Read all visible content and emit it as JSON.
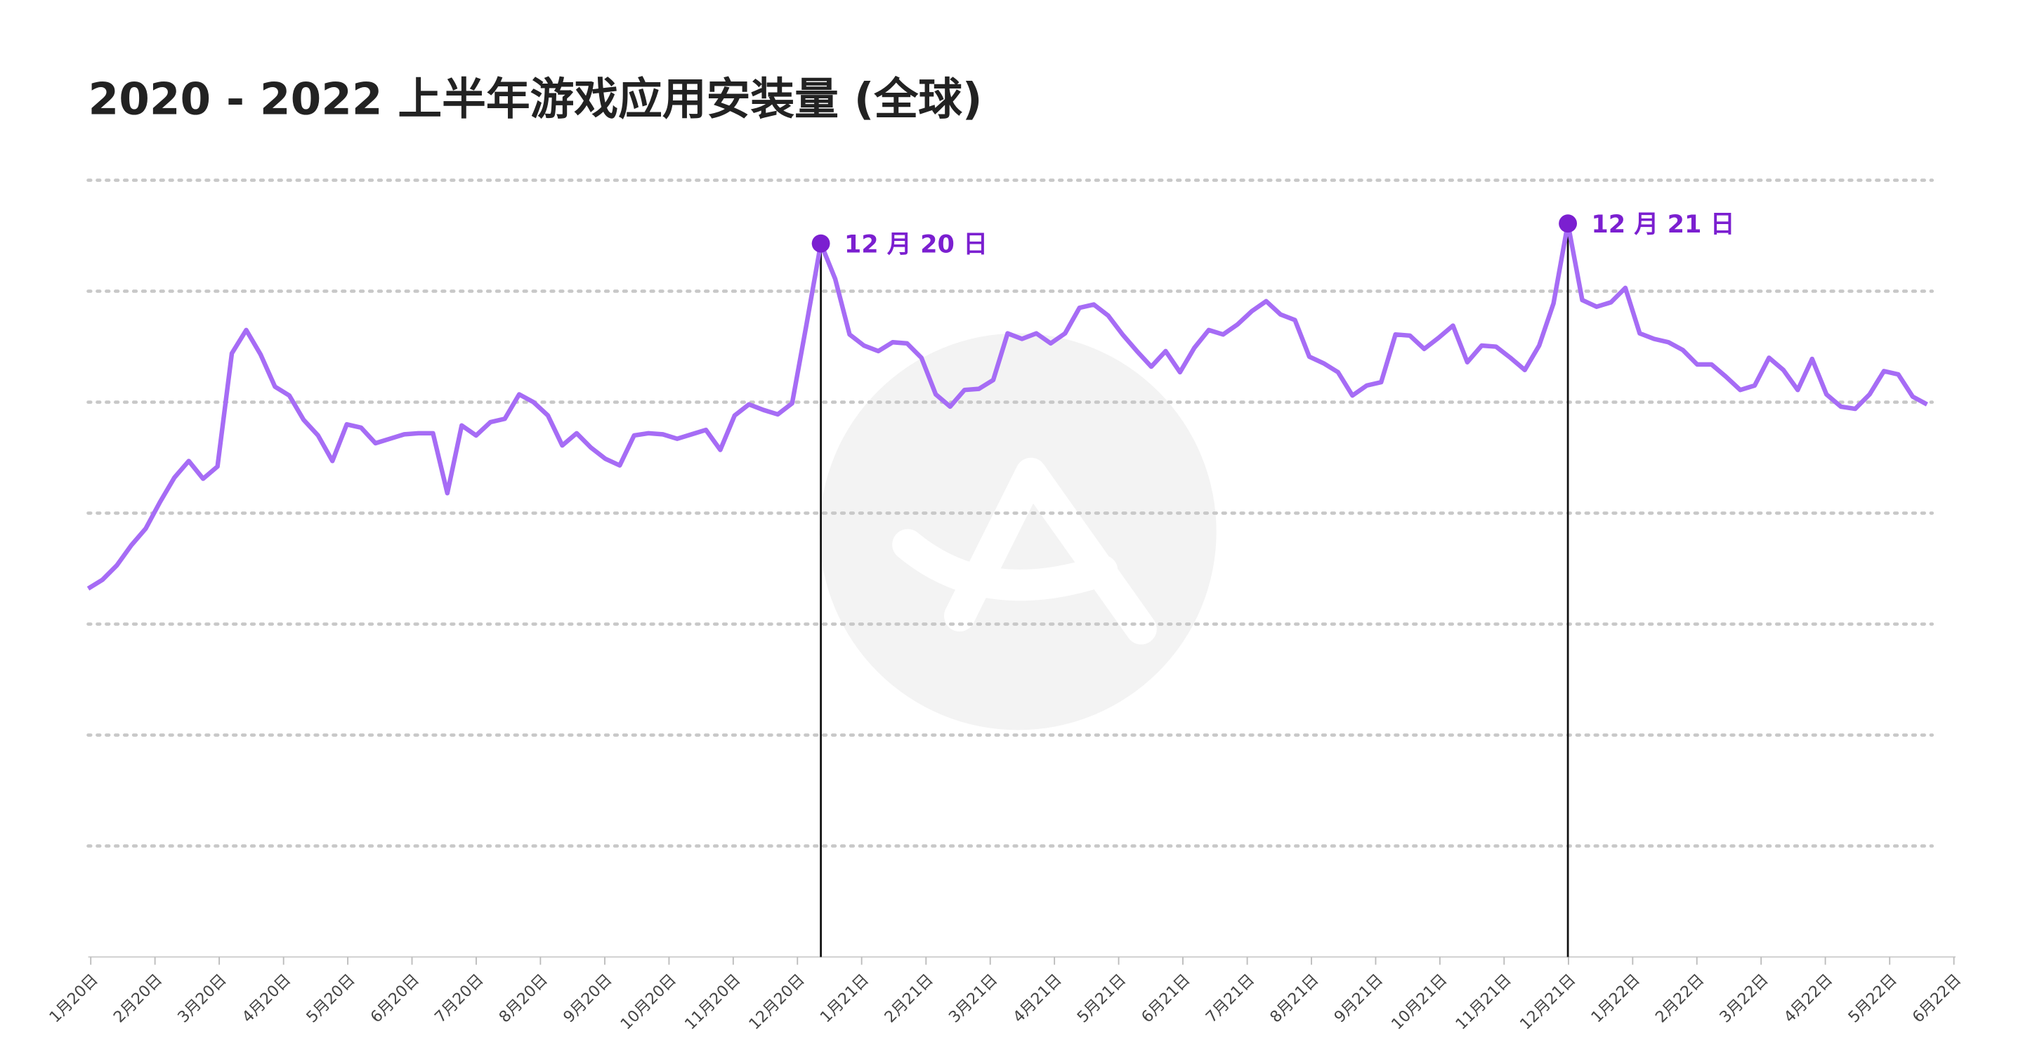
{
  "chart_data": {
    "type": "line",
    "title": "2020 - 2022 上半年游戏应用安装量 (全球)",
    "series": [
      {
        "color": "#a66cf5",
        "values": [
          3.32,
          3.4,
          3.53,
          3.71,
          3.86,
          4.1,
          4.32,
          4.47,
          4.31,
          4.42,
          5.44,
          5.65,
          5.43,
          5.14,
          5.06,
          4.84,
          4.7,
          4.47,
          4.8,
          4.77,
          4.63,
          4.67,
          4.71,
          4.72,
          4.72,
          4.18,
          4.79,
          4.7,
          4.82,
          4.85,
          5.07,
          5.0,
          4.88,
          4.61,
          4.72,
          4.59,
          4.49,
          4.43,
          4.7,
          4.72,
          4.71,
          4.67,
          4.71,
          4.75,
          4.57,
          4.88,
          4.98,
          4.93,
          4.89,
          4.99,
          5.7,
          6.43,
          6.11,
          5.61,
          5.51,
          5.46,
          5.54,
          5.53,
          5.4,
          5.07,
          4.96,
          5.11,
          5.12,
          5.2,
          5.62,
          5.57,
          5.62,
          5.53,
          5.62,
          5.85,
          5.88,
          5.78,
          5.61,
          5.46,
          5.32,
          5.46,
          5.27,
          5.49,
          5.65,
          5.61,
          5.7,
          5.82,
          5.91,
          5.79,
          5.74,
          5.41,
          5.35,
          5.27,
          5.06,
          5.15,
          5.18,
          5.61,
          5.6,
          5.48,
          5.58,
          5.69,
          5.36,
          5.51,
          5.5,
          5.4,
          5.29,
          5.51,
          5.89,
          6.61,
          5.92,
          5.86,
          5.9,
          6.03,
          5.62,
          5.57,
          5.54,
          5.47,
          5.34,
          5.34,
          5.23,
          5.11,
          5.15,
          5.4,
          5.29,
          5.11,
          5.39,
          5.07,
          4.96,
          4.94,
          5.07,
          5.28,
          5.25,
          5.05,
          4.98
        ]
      }
    ],
    "annotations": [
      {
        "index": 51,
        "text": "12 月 20 日",
        "color": "#7b1fd0"
      },
      {
        "index": 103,
        "text": "12 月 21 日",
        "color": "#7b1fd0"
      }
    ],
    "xlim": [
      0,
      128
    ],
    "xticks": [
      {
        "value": 0.18,
        "label": "1月20日"
      },
      {
        "value": 4.65,
        "label": "2月20日"
      },
      {
        "value": 9.12,
        "label": "3月20日"
      },
      {
        "value": 13.6,
        "label": "4月20日"
      },
      {
        "value": 18.07,
        "label": "5月20日"
      },
      {
        "value": 22.54,
        "label": "6月20日"
      },
      {
        "value": 27.01,
        "label": "7月20日"
      },
      {
        "value": 31.48,
        "label": "8月20日"
      },
      {
        "value": 35.96,
        "label": "9月20日"
      },
      {
        "value": 40.43,
        "label": "10月20日"
      },
      {
        "value": 44.9,
        "label": "11月20日"
      },
      {
        "value": 49.37,
        "label": "12月20日"
      },
      {
        "value": 53.84,
        "label": "1月21日"
      },
      {
        "value": 58.32,
        "label": "2月21日"
      },
      {
        "value": 62.79,
        "label": "3月21日"
      },
      {
        "value": 67.26,
        "label": "4月21日"
      },
      {
        "value": 71.73,
        "label": "5月21日"
      },
      {
        "value": 76.2,
        "label": "6月21日"
      },
      {
        "value": 80.68,
        "label": "7月21日"
      },
      {
        "value": 85.15,
        "label": "8月21日"
      },
      {
        "value": 89.62,
        "label": "9月21日"
      },
      {
        "value": 94.09,
        "label": "10月21日"
      },
      {
        "value": 98.56,
        "label": "11月21日"
      },
      {
        "value": 103.04,
        "label": "12月21日"
      },
      {
        "value": 107.51,
        "label": "1月22日"
      },
      {
        "value": 111.98,
        "label": "2月22日"
      },
      {
        "value": 116.45,
        "label": "3月22日"
      },
      {
        "value": 120.92,
        "label": "4月22日"
      },
      {
        "value": 125.4,
        "label": "5月22日"
      },
      {
        "value": 129.87,
        "label": "6月22日"
      }
    ],
    "ylim": [
      0,
      7
    ],
    "yticks": [
      1,
      2,
      3,
      4,
      5,
      6,
      7
    ],
    "grid": true
  }
}
